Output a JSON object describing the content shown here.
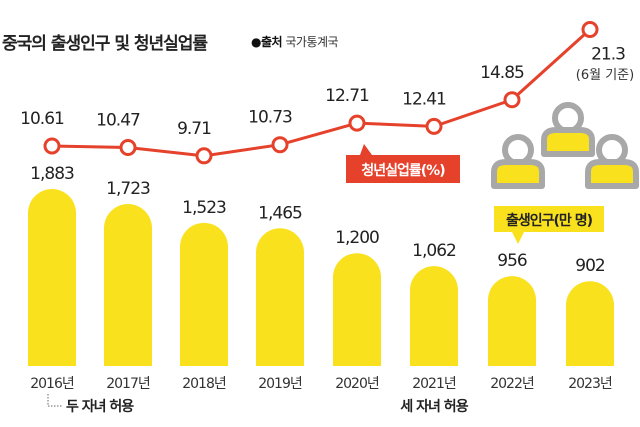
{
  "chart_data": {
    "type": "bar+line",
    "title": "중국의 출생인구 및 청년실업률",
    "source_label": "●출처",
    "source": "국가통계국",
    "categories": [
      "2016년",
      "2017년",
      "2018년",
      "2019년",
      "2020년",
      "2021년",
      "2022년",
      "2023년"
    ],
    "series": [
      {
        "name": "출생인구(만 명)",
        "type": "bar",
        "values": [
          1883,
          1723,
          1523,
          1465,
          1200,
          1062,
          956,
          902
        ],
        "labels": [
          "1,883",
          "1,723",
          "1,523",
          "1,465",
          "1,200",
          "1,062",
          "956",
          "902"
        ],
        "color": "#f9e11e"
      },
      {
        "name": "청년실업률(%)",
        "type": "line",
        "values": [
          10.61,
          10.47,
          9.71,
          10.73,
          12.71,
          12.41,
          14.85,
          21.3
        ],
        "labels": [
          "10.61",
          "10.47",
          "9.71",
          "10.73",
          "12.71",
          "12.41",
          "14.85",
          "21.3"
        ],
        "color": "#e5412b"
      }
    ],
    "annotations": {
      "last_point_note": "(6월 기준)",
      "two_child": "두 자녀 허용",
      "three_child": "세 자녀 허용"
    }
  }
}
